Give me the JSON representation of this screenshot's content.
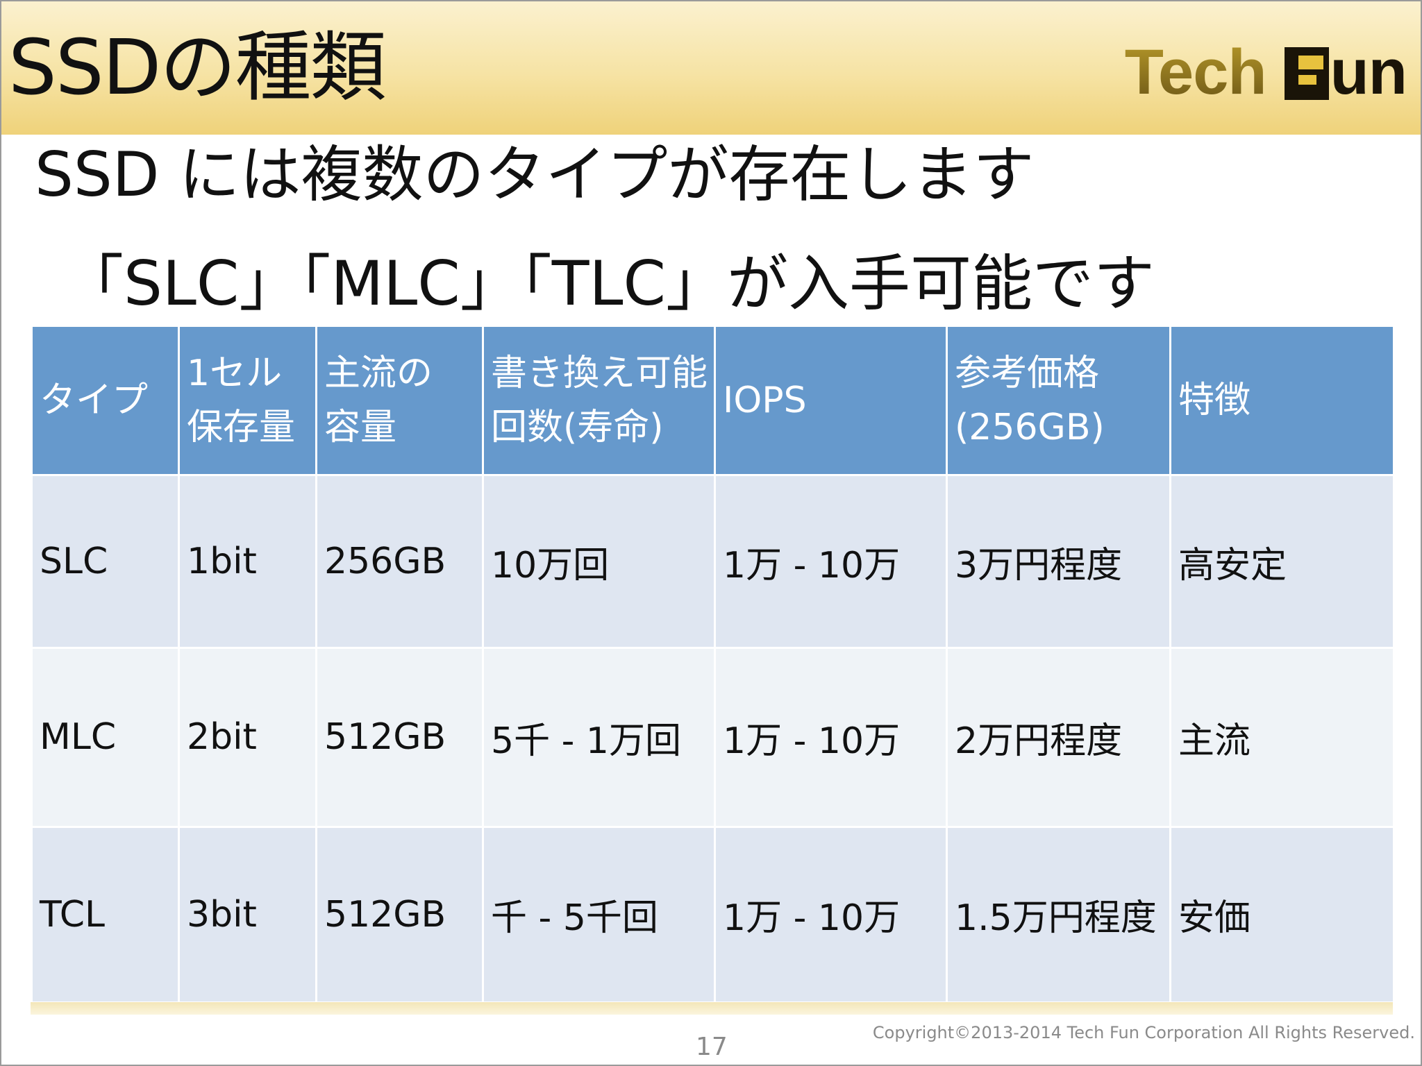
{
  "header": {
    "title": "SSDの種類",
    "logo_text_1": "Tech",
    "logo_text_2": "un"
  },
  "subtitles": [
    "SSD には複数のタイプが存在します",
    "「SLC」「MLC」「TLC」が入手可能です"
  ],
  "table": {
    "headers": [
      "タイプ",
      "1セル\n保存量",
      "主流の\n容量",
      "書き換え可能\n回数(寿命)",
      "IOPS",
      "参考価格\n(256GB)",
      "特徴"
    ],
    "rows": [
      [
        "SLC",
        "1bit",
        "256GB",
        "10万回",
        "1万 - 10万",
        "3万円程度",
        "高安定"
      ],
      [
        "MLC",
        "2bit",
        "512GB",
        "5千 - 1万回",
        "1万 - 10万",
        "2万円程度",
        "主流"
      ],
      [
        "TCL",
        "3bit",
        "512GB",
        "千 - 5千回",
        "1万 - 10万",
        "1.5万円程度",
        "安価"
      ]
    ]
  },
  "footer": {
    "page_number": "17",
    "copyright": "Copyright©2013-2014 Tech Fun Corporation All Rights Reserved."
  }
}
